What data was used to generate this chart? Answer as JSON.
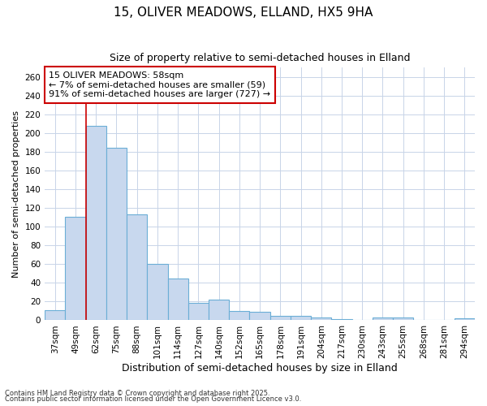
{
  "title": "15, OLIVER MEADOWS, ELLAND, HX5 9HA",
  "subtitle": "Size of property relative to semi-detached houses in Elland",
  "xlabel": "Distribution of semi-detached houses by size in Elland",
  "ylabel": "Number of semi-detached properties",
  "categories": [
    "37sqm",
    "49sqm",
    "62sqm",
    "75sqm",
    "88sqm",
    "101sqm",
    "114sqm",
    "127sqm",
    "140sqm",
    "152sqm",
    "165sqm",
    "178sqm",
    "191sqm",
    "204sqm",
    "217sqm",
    "230sqm",
    "243sqm",
    "255sqm",
    "268sqm",
    "281sqm",
    "294sqm"
  ],
  "values": [
    11,
    111,
    208,
    184,
    113,
    60,
    45,
    19,
    22,
    10,
    9,
    5,
    5,
    3,
    1,
    0,
    3,
    3,
    0,
    0,
    2
  ],
  "bar_color": "#c8d8ee",
  "bar_edge_color": "#6baed6",
  "grid_color": "#c8d4e8",
  "bg_color": "#ffffff",
  "plot_bg_color": "#ffffff",
  "red_line_index": 1,
  "annotation_title": "15 OLIVER MEADOWS: 58sqm",
  "annotation_line1": "← 7% of semi-detached houses are smaller (59)",
  "annotation_line2": "91% of semi-detached houses are larger (727) →",
  "annotation_box_color": "#ffffff",
  "annotation_border_color": "#cc0000",
  "ylim": [
    0,
    270
  ],
  "yticks": [
    0,
    20,
    40,
    60,
    80,
    100,
    120,
    140,
    160,
    180,
    200,
    220,
    240,
    260
  ],
  "footer1": "Contains HM Land Registry data © Crown copyright and database right 2025.",
  "footer2": "Contains public sector information licensed under the Open Government Licence v3.0.",
  "title_fontsize": 11,
  "subtitle_fontsize": 9,
  "tick_fontsize": 7.5,
  "ylabel_fontsize": 8,
  "xlabel_fontsize": 9,
  "footer_fontsize": 6,
  "annotation_fontsize": 8
}
